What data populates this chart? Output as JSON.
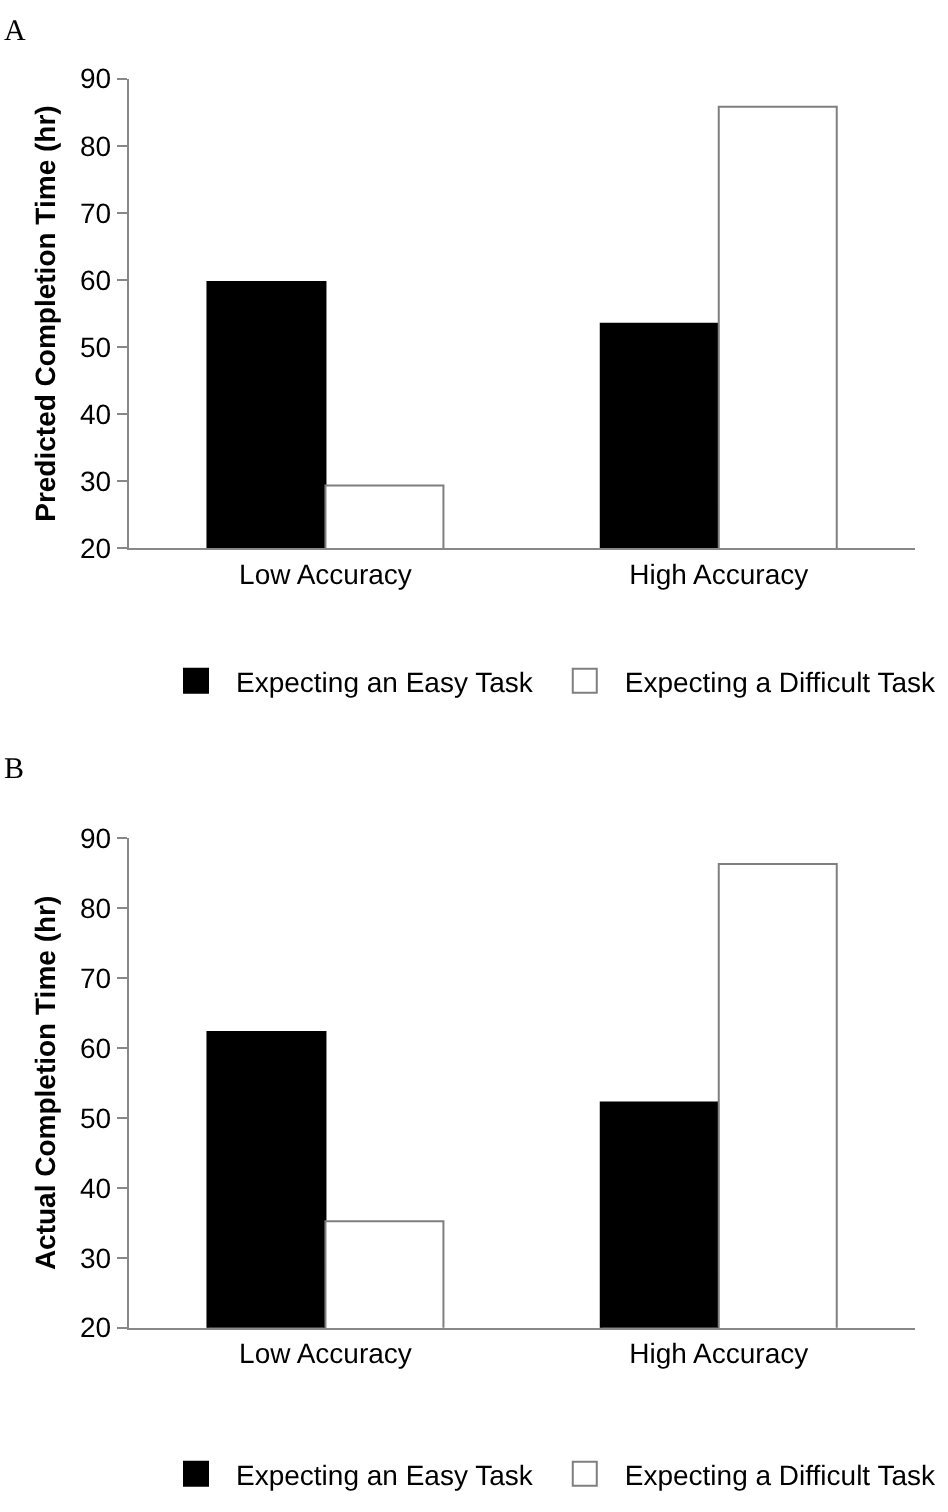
{
  "chart_data": [
    {
      "type": "bar",
      "title": "A",
      "ylabel": "Predicted Completion Time (hr)",
      "categories": [
        "Low Accuracy",
        "High Accuracy"
      ],
      "series": [
        {
          "name": "Expecting an Easy Task",
          "color": "#000000",
          "values": [
            59.7,
            53.5
          ]
        },
        {
          "name": "Expecting a Difficult Task",
          "color": "#ffffff",
          "values": [
            29.4,
            85.8
          ]
        }
      ],
      "ylim": [
        20,
        90
      ],
      "yticks": [
        20,
        30,
        40,
        50,
        60,
        70,
        80,
        90
      ],
      "grid": false,
      "legend": "bottom"
    },
    {
      "type": "bar",
      "title": "B",
      "ylabel": "Actual Completion Time (hr)",
      "categories": [
        "Low Accuracy",
        "High Accuracy"
      ],
      "series": [
        {
          "name": "Expecting an Easy Task",
          "color": "#000000",
          "values": [
            62.3,
            52.2
          ]
        },
        {
          "name": "Expecting a Difficult Task",
          "color": "#ffffff",
          "values": [
            35.2,
            86.3
          ]
        }
      ],
      "ylim": [
        20,
        90
      ],
      "yticks": [
        20,
        30,
        40,
        50,
        60,
        70,
        80,
        90
      ],
      "grid": false,
      "legend": "bottom"
    }
  ]
}
